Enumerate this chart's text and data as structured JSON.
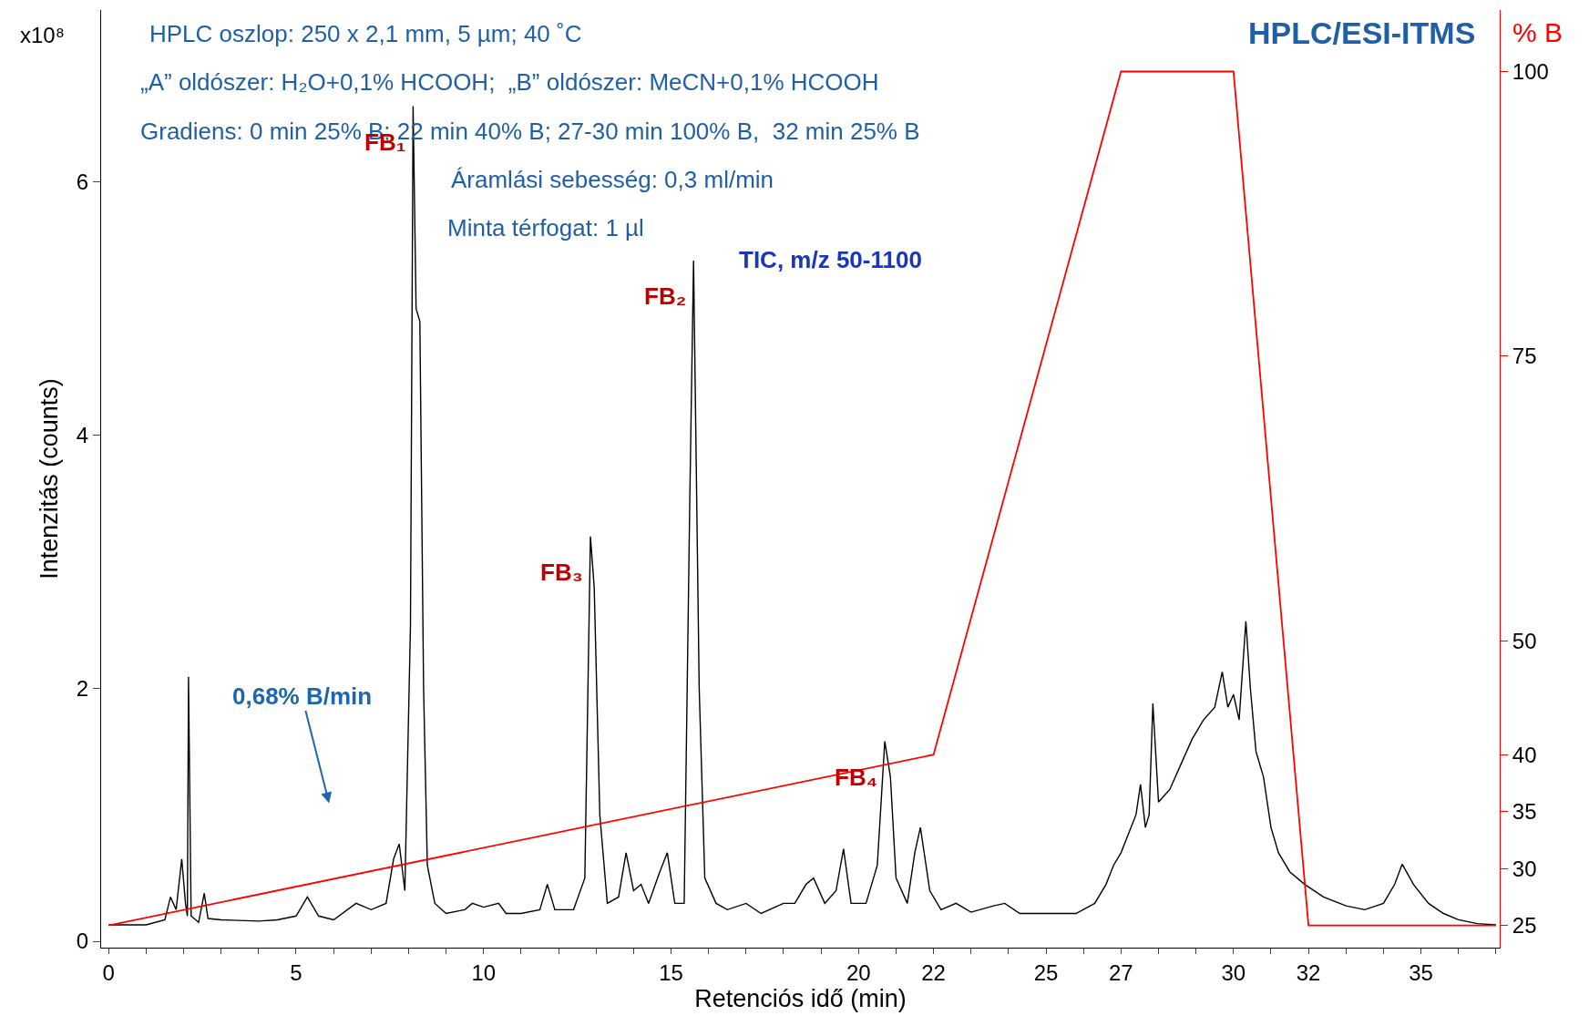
{
  "chart_data": {
    "type": "line",
    "title": "HPLC/ESI-ITMS",
    "xlabel": "Retenciós idő (min)",
    "ylabel": "Intenzitás (counts)",
    "y2label": "% B",
    "xlim": [
      -0.2,
      37.1
    ],
    "ylim": [
      -0.05,
      7.36
    ],
    "y2lim": [
      23.05,
      105.4
    ],
    "xticks": [
      0,
      {
        "value": 1,
        "label": null
      },
      {
        "value": 2,
        "label": null
      },
      {
        "value": 3,
        "label": null
      },
      {
        "value": 4,
        "label": null
      },
      5,
      {
        "value": 6,
        "label": null
      },
      {
        "value": 7,
        "label": null
      },
      {
        "value": 8,
        "label": null
      },
      {
        "value": 9,
        "label": null
      },
      10,
      {
        "value": 11,
        "label": null
      },
      {
        "value": 12,
        "label": null
      },
      {
        "value": 13,
        "label": null
      },
      {
        "value": 14,
        "label": null
      },
      15,
      {
        "value": 16,
        "label": null
      },
      {
        "value": 17,
        "label": null
      },
      {
        "value": 18,
        "label": null
      },
      {
        "value": 19,
        "label": null
      },
      20,
      {
        "value": 21,
        "label": null
      },
      22,
      {
        "value": 23,
        "label": null
      },
      {
        "value": 24,
        "label": null
      },
      25,
      {
        "value": 26,
        "label": null
      },
      27,
      {
        "value": 28,
        "label": null
      },
      {
        "value": 29,
        "label": null
      },
      30,
      {
        "value": 31,
        "label": null
      },
      32,
      {
        "value": 33,
        "label": null
      },
      {
        "value": 34,
        "label": null
      },
      35,
      {
        "value": 36,
        "label": null
      },
      {
        "value": 37,
        "label": null
      }
    ],
    "yticks": [
      0,
      2,
      4,
      6
    ],
    "y2ticks": [
      25,
      30,
      35,
      40,
      50,
      75,
      100
    ],
    "legend": false,
    "marker": "none",
    "line_style": "solid",
    "series": [
      {
        "color": "#000000",
        "x": [
          0,
          1.0,
          1.5,
          1.65,
          1.8,
          1.95,
          2.05,
          2.1,
          2.13,
          2.2,
          2.4,
          2.55,
          2.65,
          3,
          4,
          4.5,
          5.0,
          5.3,
          5.6,
          6.0,
          6.6,
          7.0,
          7.4,
          7.6,
          7.75,
          7.9,
          8.05,
          8.12,
          8.2,
          8.3,
          8.4,
          8.5,
          8.7,
          9.0,
          9.5,
          9.7,
          10.0,
          10.4,
          10.6,
          11.0,
          11.5,
          11.7,
          11.9,
          12.4,
          12.7,
          12.85,
          12.95,
          13.1,
          13.3,
          13.6,
          13.8,
          14.0,
          14.2,
          14.4,
          14.7,
          14.9,
          15.1,
          15.35,
          15.5,
          15.6,
          15.75,
          15.9,
          16.2,
          16.5,
          17.0,
          17.4,
          18.0,
          18.3,
          18.6,
          18.8,
          19.1,
          19.4,
          19.6,
          19.8,
          20.2,
          20.5,
          20.7,
          20.85,
          21.0,
          21.3,
          21.5,
          21.65,
          21.9,
          22.2,
          22.6,
          23.0,
          23.6,
          23.9,
          24.3,
          25.0,
          25.8,
          26.3,
          26.6,
          26.8,
          27.0,
          27.2,
          27.4,
          27.52,
          27.65,
          27.75,
          27.85,
          28.0,
          28.3,
          28.6,
          28.9,
          29.2,
          29.5,
          29.7,
          29.85,
          30.0,
          30.15,
          30.33,
          30.45,
          30.6,
          30.8,
          30.9,
          31.0,
          31.2,
          31.5,
          31.9,
          32.4,
          33.0,
          33.5,
          34.0,
          34.3,
          34.5,
          34.8,
          35.2,
          35.6,
          36.0,
          36.5,
          37.0
        ],
        "values": [
          0.13,
          0.13,
          0.17,
          0.35,
          0.25,
          0.65,
          0.3,
          0.2,
          2.09,
          0.2,
          0.15,
          0.38,
          0.18,
          0.17,
          0.16,
          0.17,
          0.2,
          0.35,
          0.2,
          0.17,
          0.3,
          0.25,
          0.3,
          0.65,
          0.77,
          0.4,
          2.5,
          6.6,
          5.0,
          4.9,
          2.0,
          0.6,
          0.3,
          0.22,
          0.25,
          0.3,
          0.27,
          0.3,
          0.22,
          0.22,
          0.25,
          0.45,
          0.25,
          0.25,
          0.5,
          3.2,
          2.8,
          1.0,
          0.3,
          0.35,
          0.7,
          0.4,
          0.45,
          0.3,
          0.55,
          0.7,
          0.3,
          0.3,
          3.5,
          5.38,
          2.0,
          0.5,
          0.3,
          0.25,
          0.3,
          0.22,
          0.3,
          0.3,
          0.45,
          0.5,
          0.3,
          0.4,
          0.73,
          0.3,
          0.3,
          0.6,
          1.58,
          1.3,
          0.5,
          0.3,
          0.7,
          0.9,
          0.4,
          0.25,
          0.3,
          0.23,
          0.28,
          0.3,
          0.22,
          0.22,
          0.22,
          0.3,
          0.45,
          0.6,
          0.7,
          0.85,
          1.0,
          1.24,
          0.9,
          1.0,
          1.88,
          1.1,
          1.2,
          1.4,
          1.6,
          1.75,
          1.85,
          2.13,
          1.85,
          1.95,
          1.75,
          2.53,
          2.0,
          1.5,
          1.3,
          1.1,
          0.9,
          0.7,
          0.55,
          0.45,
          0.35,
          0.28,
          0.25,
          0.3,
          0.45,
          0.61,
          0.45,
          0.3,
          0.22,
          0.17,
          0.14,
          0.13
        ]
      },
      {
        "color": "#ff0000",
        "axis": "y2",
        "x": [
          0,
          22,
          27,
          30,
          32,
          37
        ],
        "values": [
          25,
          40,
          100,
          100,
          25,
          25
        ]
      }
    ],
    "annotations": [
      "HPLC oszlop: 250 x 2,1 mm, 5 µm; 40 ˚C",
      "„A” oldószer: H₂O+0,1% HCOOH;  „B” oldószer: MeCN+0,1% HCOOH",
      "Gradiens: 0 min 25% B; 22 min 40% B; 27-30 min 100% B,  32 min 25% B",
      "Áramlási sebesség: 0,3 ml/min",
      "Minta térfogat: 1 µl",
      "TIC, m/z 50-1100",
      "x10⁸",
      {
        "text": "FB₁",
        "x": 8.12,
        "y": 6.6
      },
      {
        "text": "FB₂",
        "x": 15.6,
        "y": 5.38
      },
      {
        "text": "FB₃",
        "x": 12.85,
        "y": 3.2
      },
      {
        "text": "FB₄",
        "x": 20.7,
        "y": 1.58
      },
      "0,68% B/min"
    ]
  }
}
